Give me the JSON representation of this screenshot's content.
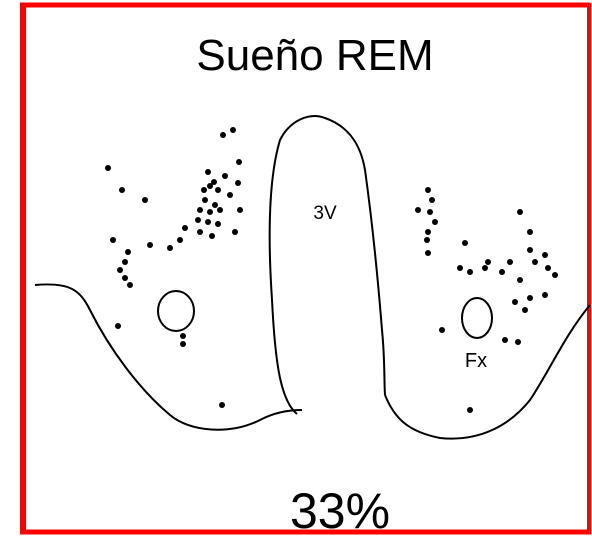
{
  "title": "Sueño REM",
  "labels": {
    "ventricle": "3V",
    "fornix": "Fx"
  },
  "percentage": "33%"
}
